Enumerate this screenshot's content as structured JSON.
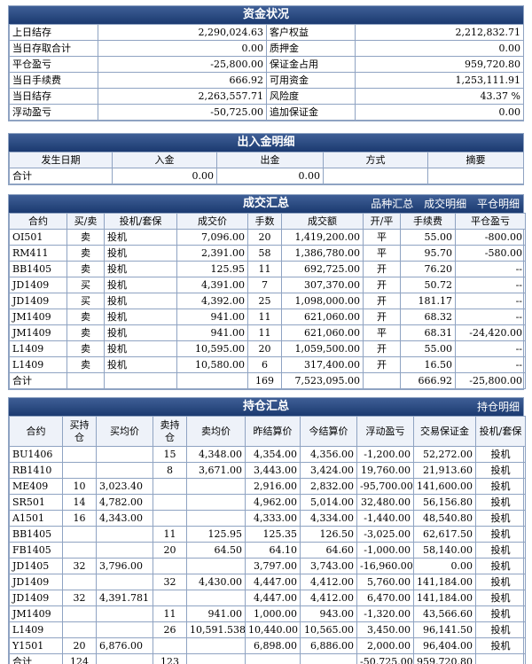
{
  "capital": {
    "title": "资金状况",
    "rows": [
      [
        "上日结存",
        "2,290,024.63",
        "客户权益",
        "2,212,832.71"
      ],
      [
        "当日存取合计",
        "0.00",
        "质押金",
        "0.00"
      ],
      [
        "平仓盈亏",
        "-25,800.00",
        "保证金占用",
        "959,720.80"
      ],
      [
        "当日手续费",
        "666.92",
        "可用资金",
        "1,253,111.91"
      ],
      [
        "当日结存",
        "2,263,557.71",
        "风险度",
        "43.37 %"
      ],
      [
        "浮动盈亏",
        "-50,725.00",
        "追加保证金",
        "0.00"
      ]
    ]
  },
  "cashflow": {
    "title": "出入金明细",
    "headers": [
      "发生日期",
      "入金",
      "出金",
      "方式",
      "摘要"
    ],
    "total": [
      "合计",
      "0.00",
      "0.00",
      "",
      ""
    ]
  },
  "trades": {
    "title": "成交汇总",
    "tabs": [
      "品种汇总",
      "成交明细",
      "平仓明细"
    ],
    "headers": [
      "合约",
      "买/卖",
      "投机/套保",
      "成交价",
      "手数",
      "成交额",
      "开/平",
      "手续费",
      "平仓盈亏"
    ],
    "rows": [
      [
        "OI501",
        "卖",
        "投机",
        "7,096.00",
        "20",
        "1,419,200.00",
        "平",
        "55.00",
        "-800.00"
      ],
      [
        "RM411",
        "卖",
        "投机",
        "2,391.00",
        "58",
        "1,386,780.00",
        "平",
        "95.70",
        "-580.00"
      ],
      [
        "BB1405",
        "卖",
        "投机",
        "125.95",
        "11",
        "692,725.00",
        "开",
        "76.20",
        "--"
      ],
      [
        "JD1409",
        "买",
        "投机",
        "4,391.00",
        "7",
        "307,370.00",
        "开",
        "50.72",
        "--"
      ],
      [
        "JD1409",
        "买",
        "投机",
        "4,392.00",
        "25",
        "1,098,000.00",
        "开",
        "181.17",
        "--"
      ],
      [
        "JM1409",
        "卖",
        "投机",
        "941.00",
        "11",
        "621,060.00",
        "开",
        "68.32",
        "--"
      ],
      [
        "JM1409",
        "卖",
        "投机",
        "941.00",
        "11",
        "621,060.00",
        "平",
        "68.31",
        "-24,420.00"
      ],
      [
        "L1409",
        "卖",
        "投机",
        "10,595.00",
        "20",
        "1,059,500.00",
        "开",
        "55.00",
        "--"
      ],
      [
        "L1409",
        "卖",
        "投机",
        "10,580.00",
        "6",
        "317,400.00",
        "开",
        "16.50",
        "--"
      ]
    ],
    "total": [
      "合计",
      "",
      "",
      "",
      "169",
      "7,523,095.00",
      "",
      "666.92",
      "-25,800.00"
    ]
  },
  "positions": {
    "title": "持仓汇总",
    "tabs": [
      "持仓明细"
    ],
    "headers": [
      "合约",
      "买持仓",
      "买均价",
      "卖持仓",
      "卖均价",
      "昨结算价",
      "今结算价",
      "浮动盈亏",
      "交易保证金",
      "投机/套保"
    ],
    "rows": [
      [
        "BU1406",
        "",
        "",
        "15",
        "4,348.00",
        "4,354.00",
        "4,356.00",
        "-1,200.00",
        "52,272.00",
        "投机"
      ],
      [
        "RB1410",
        "",
        "",
        "8",
        "3,671.00",
        "3,443.00",
        "3,424.00",
        "19,760.00",
        "21,913.60",
        "投机"
      ],
      [
        "ME409",
        "10",
        "3,023.40",
        "",
        "",
        "2,916.00",
        "2,832.00",
        "-95,700.00",
        "141,600.00",
        "投机"
      ],
      [
        "SR501",
        "14",
        "4,782.00",
        "",
        "",
        "4,962.00",
        "5,014.00",
        "32,480.00",
        "56,156.80",
        "投机"
      ],
      [
        "A1501",
        "16",
        "4,343.00",
        "",
        "",
        "4,333.00",
        "4,334.00",
        "-1,440.00",
        "48,540.80",
        "投机"
      ],
      [
        "BB1405",
        "",
        "",
        "11",
        "125.95",
        "125.35",
        "126.50",
        "-3,025.00",
        "62,617.50",
        "投机"
      ],
      [
        "FB1405",
        "",
        "",
        "20",
        "64.50",
        "64.10",
        "64.60",
        "-1,000.00",
        "58,140.00",
        "投机"
      ],
      [
        "JD1405",
        "32",
        "3,796.00",
        "",
        "",
        "3,797.00",
        "3,743.00",
        "-16,960.00",
        "0.00",
        "投机"
      ],
      [
        "JD1409",
        "",
        "",
        "32",
        "4,430.00",
        "4,447.00",
        "4,412.00",
        "5,760.00",
        "141,184.00",
        "投机"
      ],
      [
        "JD1409",
        "32",
        "4,391.781",
        "",
        "",
        "4,447.00",
        "4,412.00",
        "6,470.00",
        "141,184.00",
        "投机"
      ],
      [
        "JM1409",
        "",
        "",
        "11",
        "941.00",
        "1,000.00",
        "943.00",
        "-1,320.00",
        "43,566.60",
        "投机"
      ],
      [
        "L1409",
        "",
        "",
        "26",
        "10,591.538",
        "10,440.00",
        "10,565.00",
        "3,450.00",
        "96,141.50",
        "投机"
      ],
      [
        "Y1501",
        "20",
        "6,876.00",
        "",
        "",
        "6,898.00",
        "6,886.00",
        "2,000.00",
        "96,404.00",
        "投机"
      ]
    ],
    "total": [
      "合计",
      "124",
      "",
      "123",
      "",
      "",
      "",
      "-50,725.00",
      "959,720.80",
      ""
    ]
  }
}
